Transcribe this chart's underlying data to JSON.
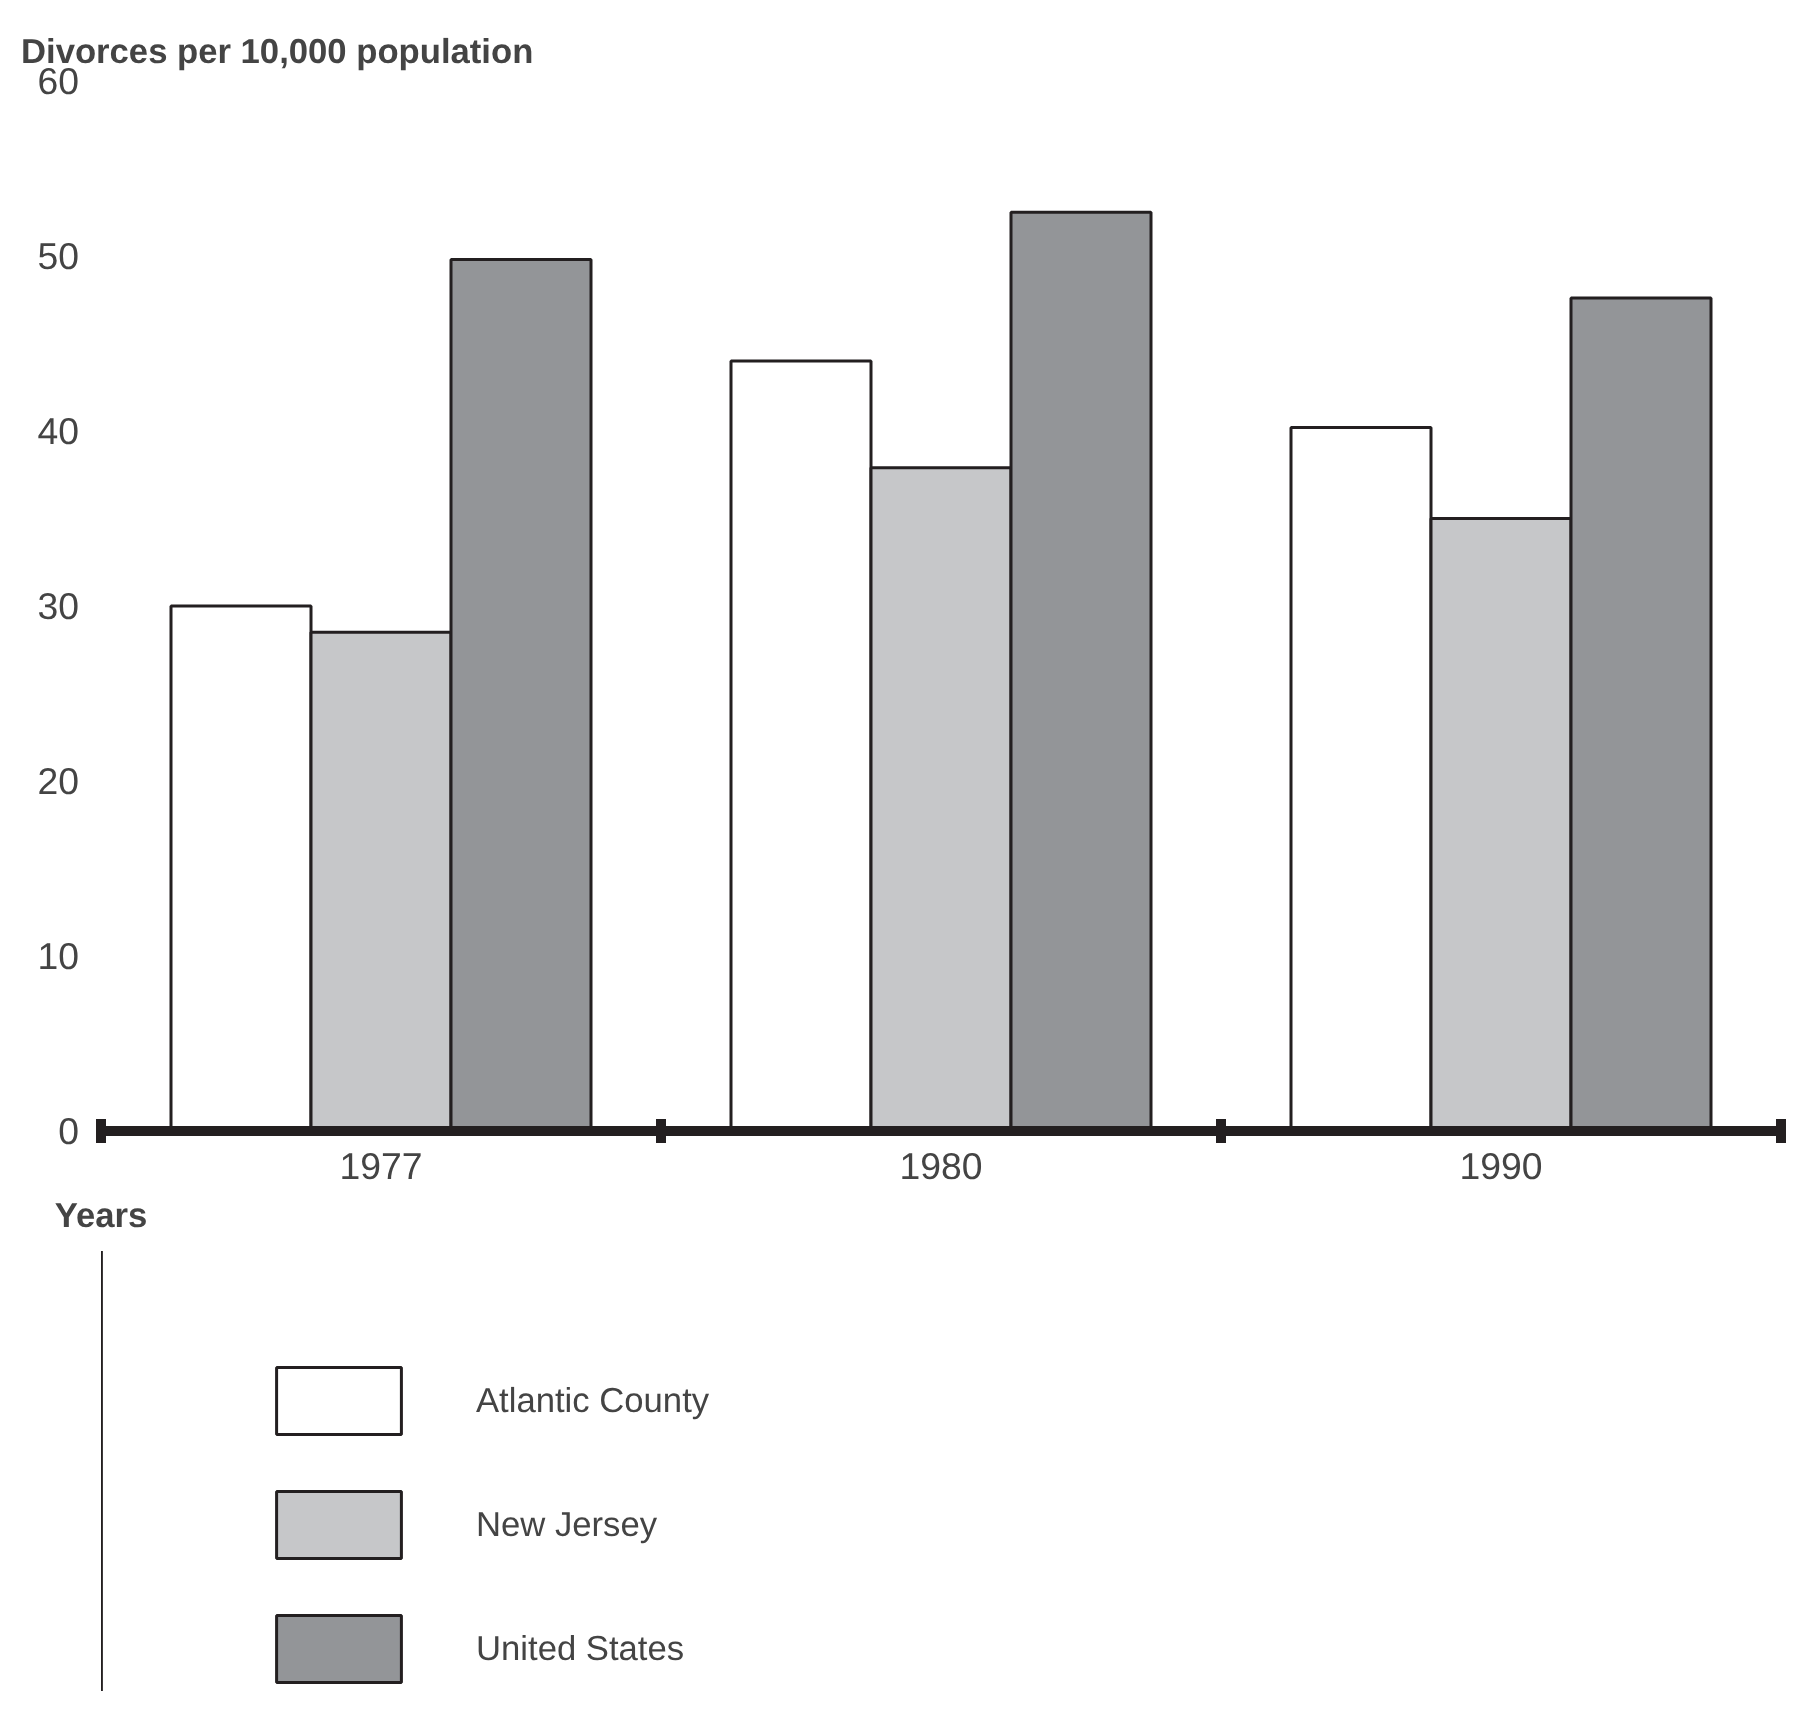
{
  "chart_data": {
    "type": "bar",
    "ylabel": "Divorces per 10,000 population",
    "xlabel": "Years",
    "categories": [
      "1977",
      "1980",
      "1990"
    ],
    "series": [
      {
        "name": "Atlantic County",
        "color": "#ffffff",
        "values": [
          30,
          44,
          40.2
        ]
      },
      {
        "name": "New Jersey",
        "color": "#c6c7c9",
        "values": [
          28.5,
          37.9,
          35
        ]
      },
      {
        "name": "United States",
        "color": "#939598",
        "values": [
          49.8,
          52.5,
          47.6
        ]
      }
    ],
    "ylim": [
      0,
      60
    ],
    "yticks": [
      0,
      10,
      20,
      30,
      40,
      50,
      60
    ],
    "grid": false,
    "legend": "bottom"
  }
}
